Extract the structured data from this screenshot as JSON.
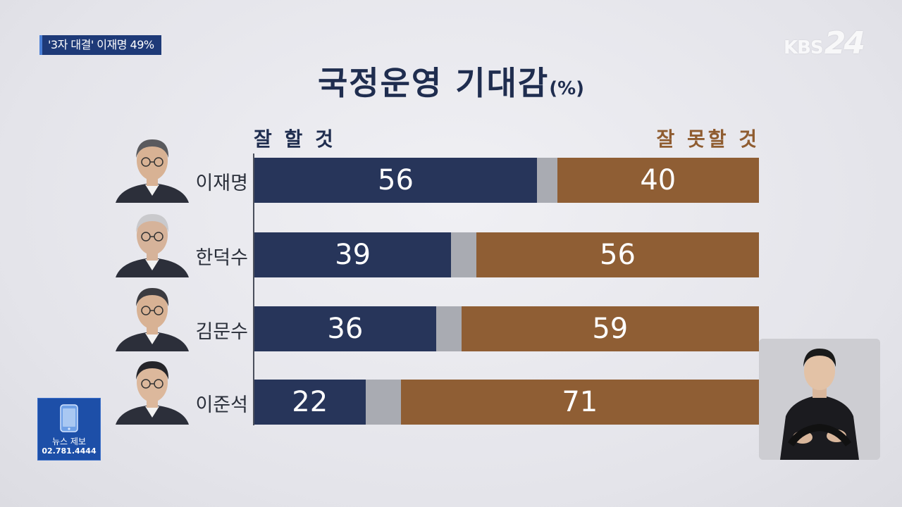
{
  "headline": "'3자 대결' 이재명 49%",
  "logo": {
    "kbs": "KBS",
    "channel": "24"
  },
  "chart_data": {
    "type": "bar",
    "title": "국정운영 기대감",
    "unit": "(%)",
    "legend": {
      "positive": "잘 할 것",
      "negative": "잘 못할 것"
    },
    "categories": [
      "이재명",
      "한덕수",
      "김문수",
      "이준석"
    ],
    "series": [
      {
        "name": "잘 할 것",
        "values": [
          56,
          39,
          36,
          22
        ]
      },
      {
        "name": "잘 못할 것",
        "values": [
          40,
          56,
          59,
          71
        ]
      }
    ],
    "colors": {
      "positive": "#27355a",
      "neutral": "#a9abb2",
      "negative": "#8f5e34"
    },
    "stacked": true,
    "xlim": [
      0,
      100
    ]
  },
  "news_tip": {
    "label": "뉴스 제보",
    "phone": "02.781.4444",
    "icon": "phone-icon"
  }
}
